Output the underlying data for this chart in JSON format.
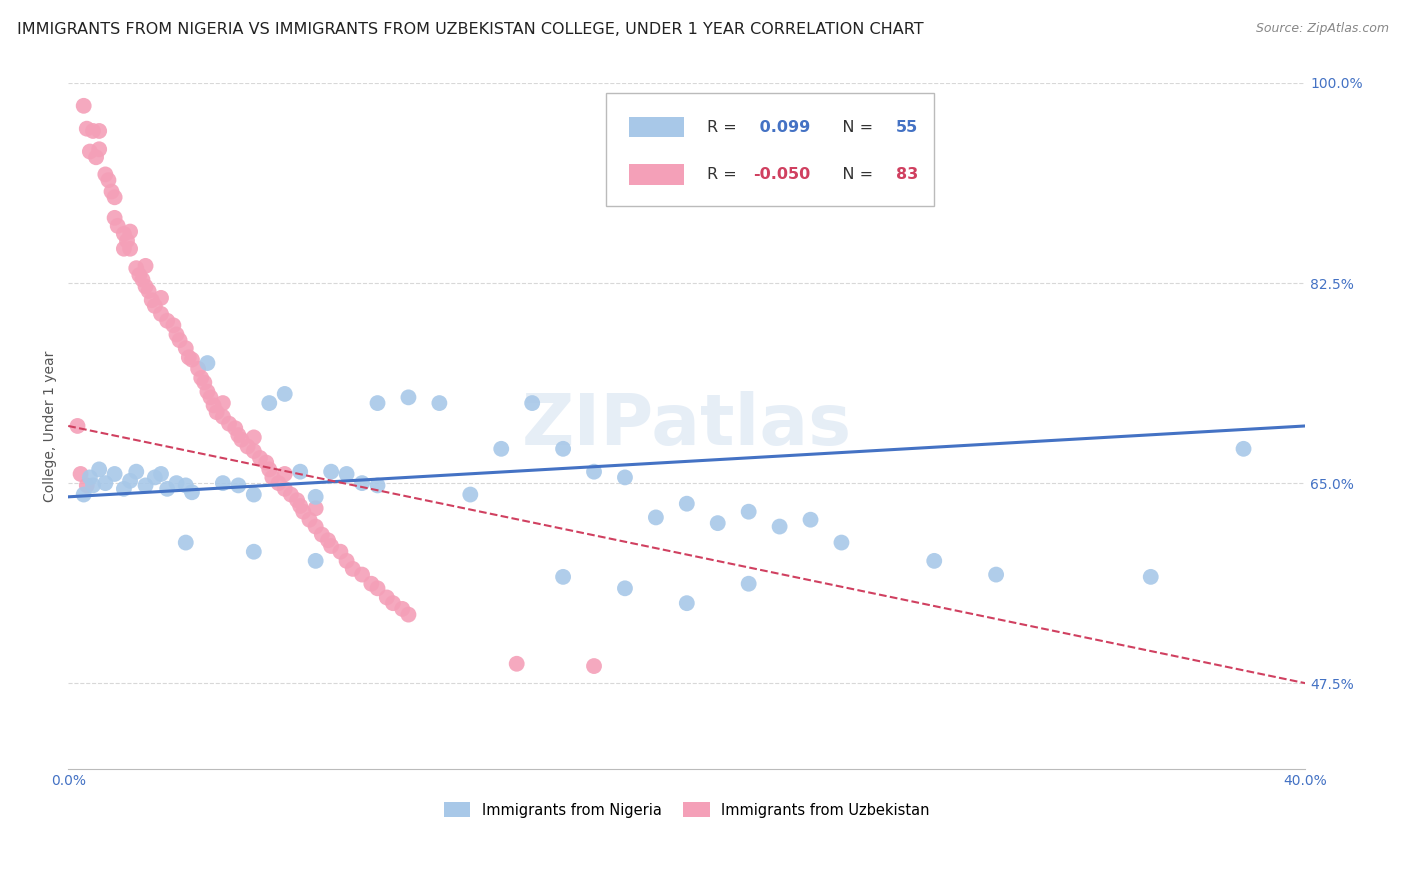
{
  "title": "IMMIGRANTS FROM NIGERIA VS IMMIGRANTS FROM UZBEKISTAN COLLEGE, UNDER 1 YEAR CORRELATION CHART",
  "source": "Source: ZipAtlas.com",
  "ylabel": "College, Under 1 year",
  "xlim": [
    0.0,
    0.4
  ],
  "ylim": [
    0.4,
    1.0
  ],
  "nigeria_color": "#a8c8e8",
  "uzbekistan_color": "#f4a0b8",
  "nigeria_line_color": "#4472c4",
  "uzbekistan_line_color": "#d04060",
  "nigeria_r": 0.099,
  "nigeria_n": 55,
  "uzbekistan_r": -0.05,
  "uzbekistan_n": 83,
  "background_color": "#ffffff",
  "grid_color": "#d8d8d8",
  "title_color": "#222222",
  "axis_color": "#4472c4",
  "title_fontsize": 11.5,
  "label_fontsize": 10,
  "tick_fontsize": 10,
  "nigeria_x": [
    0.005,
    0.007,
    0.008,
    0.01,
    0.012,
    0.015,
    0.018,
    0.02,
    0.022,
    0.025,
    0.028,
    0.03,
    0.032,
    0.035,
    0.038,
    0.04,
    0.045,
    0.05,
    0.055,
    0.06,
    0.065,
    0.07,
    0.075,
    0.08,
    0.085,
    0.09,
    0.095,
    0.1,
    0.11,
    0.12,
    0.13,
    0.14,
    0.15,
    0.16,
    0.17,
    0.18,
    0.19,
    0.2,
    0.21,
    0.22,
    0.23,
    0.24,
    0.16,
    0.18,
    0.2,
    0.22,
    0.25,
    0.28,
    0.3,
    0.35,
    0.038,
    0.06,
    0.08,
    0.38,
    0.1
  ],
  "nigeria_y": [
    0.64,
    0.655,
    0.648,
    0.662,
    0.65,
    0.658,
    0.645,
    0.652,
    0.66,
    0.648,
    0.655,
    0.658,
    0.645,
    0.65,
    0.648,
    0.642,
    0.755,
    0.65,
    0.648,
    0.64,
    0.72,
    0.728,
    0.66,
    0.638,
    0.66,
    0.658,
    0.65,
    0.72,
    0.725,
    0.72,
    0.64,
    0.68,
    0.72,
    0.68,
    0.66,
    0.655,
    0.62,
    0.632,
    0.615,
    0.625,
    0.612,
    0.618,
    0.568,
    0.558,
    0.545,
    0.562,
    0.598,
    0.582,
    0.57,
    0.568,
    0.598,
    0.59,
    0.582,
    0.68,
    0.648
  ],
  "uzbekistan_x": [
    0.003,
    0.005,
    0.006,
    0.007,
    0.008,
    0.009,
    0.01,
    0.01,
    0.012,
    0.013,
    0.014,
    0.015,
    0.015,
    0.016,
    0.018,
    0.018,
    0.019,
    0.02,
    0.02,
    0.022,
    0.023,
    0.024,
    0.025,
    0.025,
    0.026,
    0.027,
    0.028,
    0.03,
    0.03,
    0.032,
    0.034,
    0.035,
    0.036,
    0.038,
    0.039,
    0.04,
    0.042,
    0.043,
    0.044,
    0.045,
    0.046,
    0.047,
    0.048,
    0.05,
    0.05,
    0.052,
    0.054,
    0.055,
    0.056,
    0.058,
    0.06,
    0.06,
    0.062,
    0.064,
    0.065,
    0.066,
    0.068,
    0.07,
    0.07,
    0.072,
    0.074,
    0.075,
    0.076,
    0.078,
    0.08,
    0.08,
    0.082,
    0.084,
    0.085,
    0.088,
    0.09,
    0.092,
    0.095,
    0.098,
    0.1,
    0.103,
    0.105,
    0.108,
    0.11,
    0.17,
    0.004,
    0.006,
    0.145
  ],
  "uzbekistan_y": [
    0.7,
    0.98,
    0.96,
    0.94,
    0.958,
    0.935,
    0.942,
    0.958,
    0.92,
    0.915,
    0.905,
    0.9,
    0.882,
    0.875,
    0.868,
    0.855,
    0.862,
    0.87,
    0.855,
    0.838,
    0.832,
    0.828,
    0.822,
    0.84,
    0.818,
    0.81,
    0.805,
    0.798,
    0.812,
    0.792,
    0.788,
    0.78,
    0.775,
    0.768,
    0.76,
    0.758,
    0.75,
    0.742,
    0.738,
    0.73,
    0.725,
    0.718,
    0.712,
    0.708,
    0.72,
    0.702,
    0.698,
    0.692,
    0.688,
    0.682,
    0.678,
    0.69,
    0.672,
    0.668,
    0.662,
    0.655,
    0.65,
    0.645,
    0.658,
    0.64,
    0.635,
    0.63,
    0.625,
    0.618,
    0.612,
    0.628,
    0.605,
    0.6,
    0.595,
    0.59,
    0.582,
    0.575,
    0.57,
    0.562,
    0.558,
    0.55,
    0.545,
    0.54,
    0.535,
    0.49,
    0.658,
    0.648,
    0.492
  ],
  "ytick_positions": [
    0.475,
    0.65,
    0.825,
    1.0
  ],
  "ytick_labels": [
    "47.5%",
    "65.0%",
    "82.5%",
    "100.0%"
  ]
}
